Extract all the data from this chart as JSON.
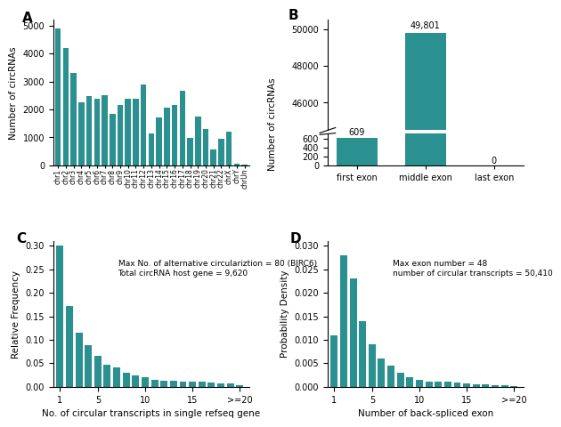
{
  "bar_color": "#2a9090",
  "panel_A": {
    "categories": [
      "chr1",
      "chr2",
      "chr3",
      "chr4",
      "chr5",
      "chr6",
      "chr7",
      "chr8",
      "chr9",
      "chr10",
      "chr11",
      "chr12",
      "chr13",
      "chr14",
      "chr15",
      "chr16",
      "chr17",
      "chr18",
      "chr19",
      "chr20",
      "chr21",
      "chr22",
      "chrX",
      "chrY",
      "chrUn"
    ],
    "values": [
      4900,
      4200,
      3300,
      2250,
      2480,
      2370,
      2520,
      1850,
      2160,
      2370,
      2390,
      2900,
      1140,
      1720,
      2060,
      2150,
      2660,
      970,
      1740,
      1290,
      560,
      940,
      1190,
      70,
      30
    ],
    "ylabel": "Number of circRNAs",
    "ylim": [
      0,
      5200
    ]
  },
  "panel_B": {
    "categories": [
      "first exon",
      "middle exon",
      "last exon"
    ],
    "values": [
      609,
      49801,
      0
    ],
    "labels": [
      "609",
      "49,801",
      "0"
    ],
    "ylabel": "Number of circRNAs",
    "lower_ylim": [
      0,
      700
    ],
    "upper_ylim": [
      44500,
      50500
    ],
    "upper_yticks": [
      46000,
      48000,
      50000
    ],
    "lower_yticks": [
      0,
      200,
      400,
      600
    ]
  },
  "panel_C": {
    "x": [
      1,
      2,
      3,
      4,
      5,
      6,
      7,
      8,
      9,
      10,
      11,
      12,
      13,
      14,
      15,
      16,
      17,
      18,
      19,
      20
    ],
    "y": [
      0.3,
      0.171,
      0.115,
      0.088,
      0.065,
      0.047,
      0.041,
      0.03,
      0.025,
      0.02,
      0.014,
      0.013,
      0.013,
      0.011,
      0.01,
      0.01,
      0.009,
      0.007,
      0.007,
      0.004
    ],
    "xlabel": "No. of circular transcripts in single refseq gene",
    "ylabel": "Relative Frequency",
    "ylim": [
      0,
      0.31
    ],
    "xtick_pos": [
      1,
      5,
      10,
      15,
      20
    ],
    "xtick_labels": [
      "1",
      "5",
      "10",
      "15",
      ">=20"
    ],
    "annotation": "Max No. of alternative circulariztion = 80 (BIRC6)\nTotal circRNA host gene = 9,620"
  },
  "panel_D": {
    "x": [
      1,
      2,
      3,
      4,
      5,
      6,
      7,
      8,
      9,
      10,
      11,
      12,
      13,
      14,
      15,
      16,
      17,
      18,
      19,
      20
    ],
    "y": [
      0.011,
      0.028,
      0.023,
      0.014,
      0.009,
      0.006,
      0.0045,
      0.003,
      0.002,
      0.0015,
      0.001,
      0.001,
      0.001,
      0.0008,
      0.0007,
      0.0006,
      0.0005,
      0.0004,
      0.0003,
      0.0002
    ],
    "xlabel": "Number of back-spliced exon",
    "ylabel": "Probability Density",
    "ylim": [
      0,
      0.031
    ],
    "xtick_pos": [
      1,
      5,
      10,
      15,
      20
    ],
    "xtick_labels": [
      "1",
      "5",
      "10",
      "15",
      ">=20"
    ],
    "annotation": "Max exon number = 48\nnumber of circular transcripts = 50,410"
  },
  "panel_label_fontsize": 11,
  "axis_label_fontsize": 7.5,
  "tick_fontsize": 7,
  "annot_fontsize": 6.5
}
